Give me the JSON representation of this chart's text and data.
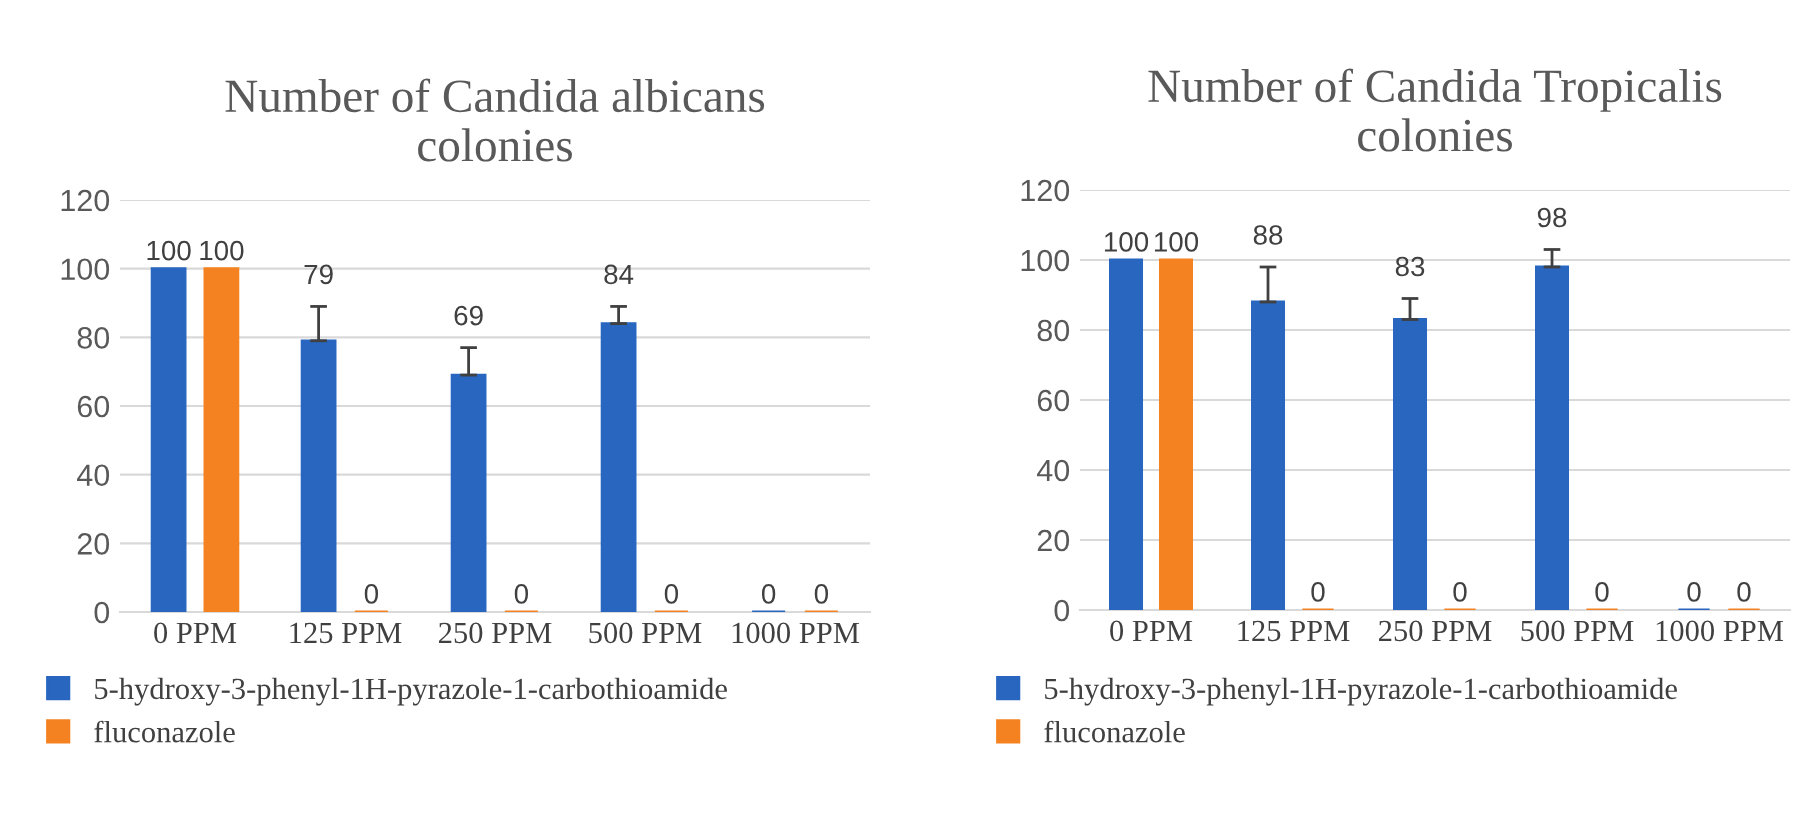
{
  "chart_data": [
    {
      "type": "bar",
      "title": "Number of Candida albicans\ncolonies",
      "categories": [
        "0 PPM",
        "125 PPM",
        "250 PPM",
        "500 PPM",
        "1000 PPM"
      ],
      "series": [
        {
          "name": "5-hydroxy-3-phenyl-1H-pyrazole-1-carbothioamide",
          "color": "#2866c0",
          "values": [
            100,
            79,
            69,
            84,
            0
          ],
          "errors": [
            null,
            [
              79,
              89
            ],
            [
              69,
              77
            ],
            [
              84,
              89
            ],
            null
          ]
        },
        {
          "name": "fluconazole",
          "color": "#f58220",
          "values": [
            100,
            0,
            0,
            0,
            0
          ]
        }
      ],
      "ylim": [
        0,
        120
      ],
      "yticks": [
        0,
        20,
        40,
        60,
        80,
        100,
        120
      ],
      "grid": "y",
      "legend": "bottom",
      "data_labels": true
    },
    {
      "type": "bar",
      "title": "Number of Candida Tropicalis\ncolonies",
      "categories": [
        "0 PPM",
        "125 PPM",
        "250 PPM",
        "500 PPM",
        "1000 PPM"
      ],
      "series": [
        {
          "name": "5-hydroxy-3-phenyl-1H-pyrazole-1-carbothioamide",
          "color": "#2866c0",
          "values": [
            100,
            88,
            83,
            98,
            0
          ],
          "errors": [
            null,
            [
              88,
              98
            ],
            [
              83,
              89
            ],
            [
              98,
              103
            ],
            null
          ]
        },
        {
          "name": "fluconazole",
          "color": "#f58220",
          "values": [
            100,
            0,
            0,
            0,
            0
          ]
        }
      ],
      "ylim": [
        0,
        120
      ],
      "yticks": [
        0,
        20,
        40,
        60,
        80,
        100,
        120
      ],
      "grid": "y",
      "legend": "bottom",
      "data_labels": true
    }
  ]
}
